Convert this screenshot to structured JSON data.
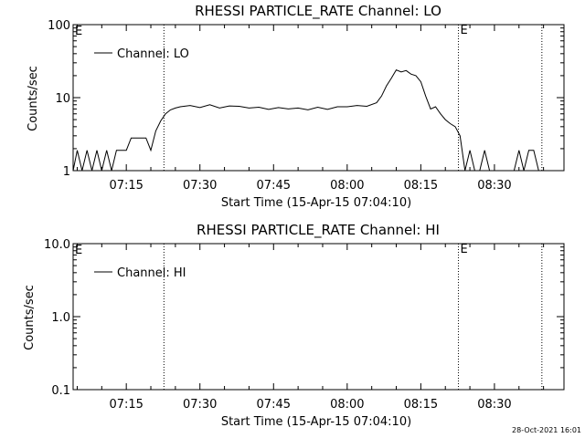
{
  "footer_timestamp": "28-Oct-2021 16:01",
  "chart_data": [
    {
      "type": "line",
      "title": "RHESSI PARTICLE_RATE Channel: LO",
      "xlabel": "Start Time (15-Apr-15 07:04:10)",
      "ylabel": "Counts/sec",
      "y_scale": "log",
      "ylim": [
        1,
        100
      ],
      "y_ticks": [
        1,
        10,
        100
      ],
      "y_tick_labels": [
        "1",
        "10",
        "100"
      ],
      "xlim": [
        "07:04:10",
        "08:44:10"
      ],
      "x_tick_labels": [
        "07:15",
        "07:30",
        "07:45",
        "08:00",
        "08:15",
        "08:30"
      ],
      "legend": "top-left",
      "series": [
        {
          "name": "Channel: LO",
          "x": [
            "07:04:10",
            "07:05:00",
            "07:06:00",
            "07:07:00",
            "07:08:00",
            "07:09:00",
            "07:10:00",
            "07:11:00",
            "07:12:00",
            "07:13:00",
            "07:14:00",
            "07:15:00",
            "07:16:00",
            "07:17:00",
            "07:18:00",
            "07:19:00",
            "07:20:00",
            "07:21:00",
            "07:22:00",
            "07:23:00",
            "07:24:00",
            "07:25:00",
            "07:26:00",
            "07:28:00",
            "07:30:00",
            "07:32:00",
            "07:34:00",
            "07:36:00",
            "07:38:00",
            "07:40:00",
            "07:42:00",
            "07:44:00",
            "07:46:00",
            "07:48:00",
            "07:50:00",
            "07:52:00",
            "07:54:00",
            "07:56:00",
            "07:58:00",
            "08:00:00",
            "08:02:00",
            "08:04:00",
            "08:06:00",
            "08:07:00",
            "08:08:00",
            "08:09:00",
            "08:10:00",
            "08:11:00",
            "08:12:00",
            "08:13:00",
            "08:14:00",
            "08:15:00",
            "08:16:00",
            "08:17:00",
            "08:18:00",
            "08:19:00",
            "08:20:00",
            "08:21:00",
            "08:22:00",
            "08:23:00",
            "08:24:00",
            "08:25:00",
            "08:26:00",
            "08:27:00",
            "08:28:00",
            "08:29:00",
            "08:30:00",
            "08:31:00",
            "08:32:00",
            "08:33:00",
            "08:34:00",
            "08:35:00",
            "08:36:00",
            "08:37:00",
            "08:38:00",
            "08:39:00"
          ],
          "y": [
            1.0,
            1.9,
            1.0,
            1.9,
            1.0,
            1.9,
            1.0,
            1.9,
            1.0,
            1.9,
            1.9,
            1.9,
            2.8,
            2.8,
            2.8,
            2.8,
            1.9,
            3.5,
            4.8,
            6.0,
            6.8,
            7.2,
            7.5,
            7.8,
            7.3,
            8.0,
            7.2,
            7.7,
            7.6,
            7.2,
            7.4,
            6.9,
            7.3,
            7.0,
            7.2,
            6.8,
            7.4,
            6.9,
            7.5,
            7.5,
            7.8,
            7.6,
            8.5,
            10.5,
            14.5,
            18.5,
            24.0,
            22.5,
            23.5,
            21.0,
            20.0,
            16.5,
            10.5,
            7.0,
            7.5,
            6.0,
            5.0,
            4.4,
            4.0,
            3.0,
            1.0,
            1.9,
            1.0,
            1.0,
            1.9,
            1.0,
            1.0,
            1.0,
            1.0,
            1.0,
            1.0,
            1.9,
            1.0,
            1.9,
            1.9,
            1.0
          ]
        }
      ],
      "markers": [
        {
          "x": "07:22:40",
          "label": ""
        },
        {
          "x": "08:22:40",
          "label": "E"
        },
        {
          "x": "08:39:40",
          "label": ""
        }
      ],
      "corner_label": "E"
    },
    {
      "type": "line",
      "title": "RHESSI PARTICLE_RATE Channel: HI",
      "xlabel": "Start Time (15-Apr-15 07:04:10)",
      "ylabel": "Counts/sec",
      "y_scale": "log",
      "ylim": [
        0.1,
        10
      ],
      "y_ticks": [
        0.1,
        1,
        10
      ],
      "y_tick_labels": [
        "0.1",
        "1.0",
        "10.0"
      ],
      "xlim": [
        "07:04:10",
        "08:44:10"
      ],
      "x_tick_labels": [
        "07:15",
        "07:30",
        "07:45",
        "08:00",
        "08:15",
        "08:30"
      ],
      "legend": "top-left",
      "series": [
        {
          "name": "Channel: HI",
          "x": [],
          "y": []
        }
      ],
      "markers": [
        {
          "x": "07:22:40",
          "label": ""
        },
        {
          "x": "08:22:40",
          "label": "E"
        },
        {
          "x": "08:39:40",
          "label": ""
        }
      ],
      "corner_label": "E"
    }
  ]
}
